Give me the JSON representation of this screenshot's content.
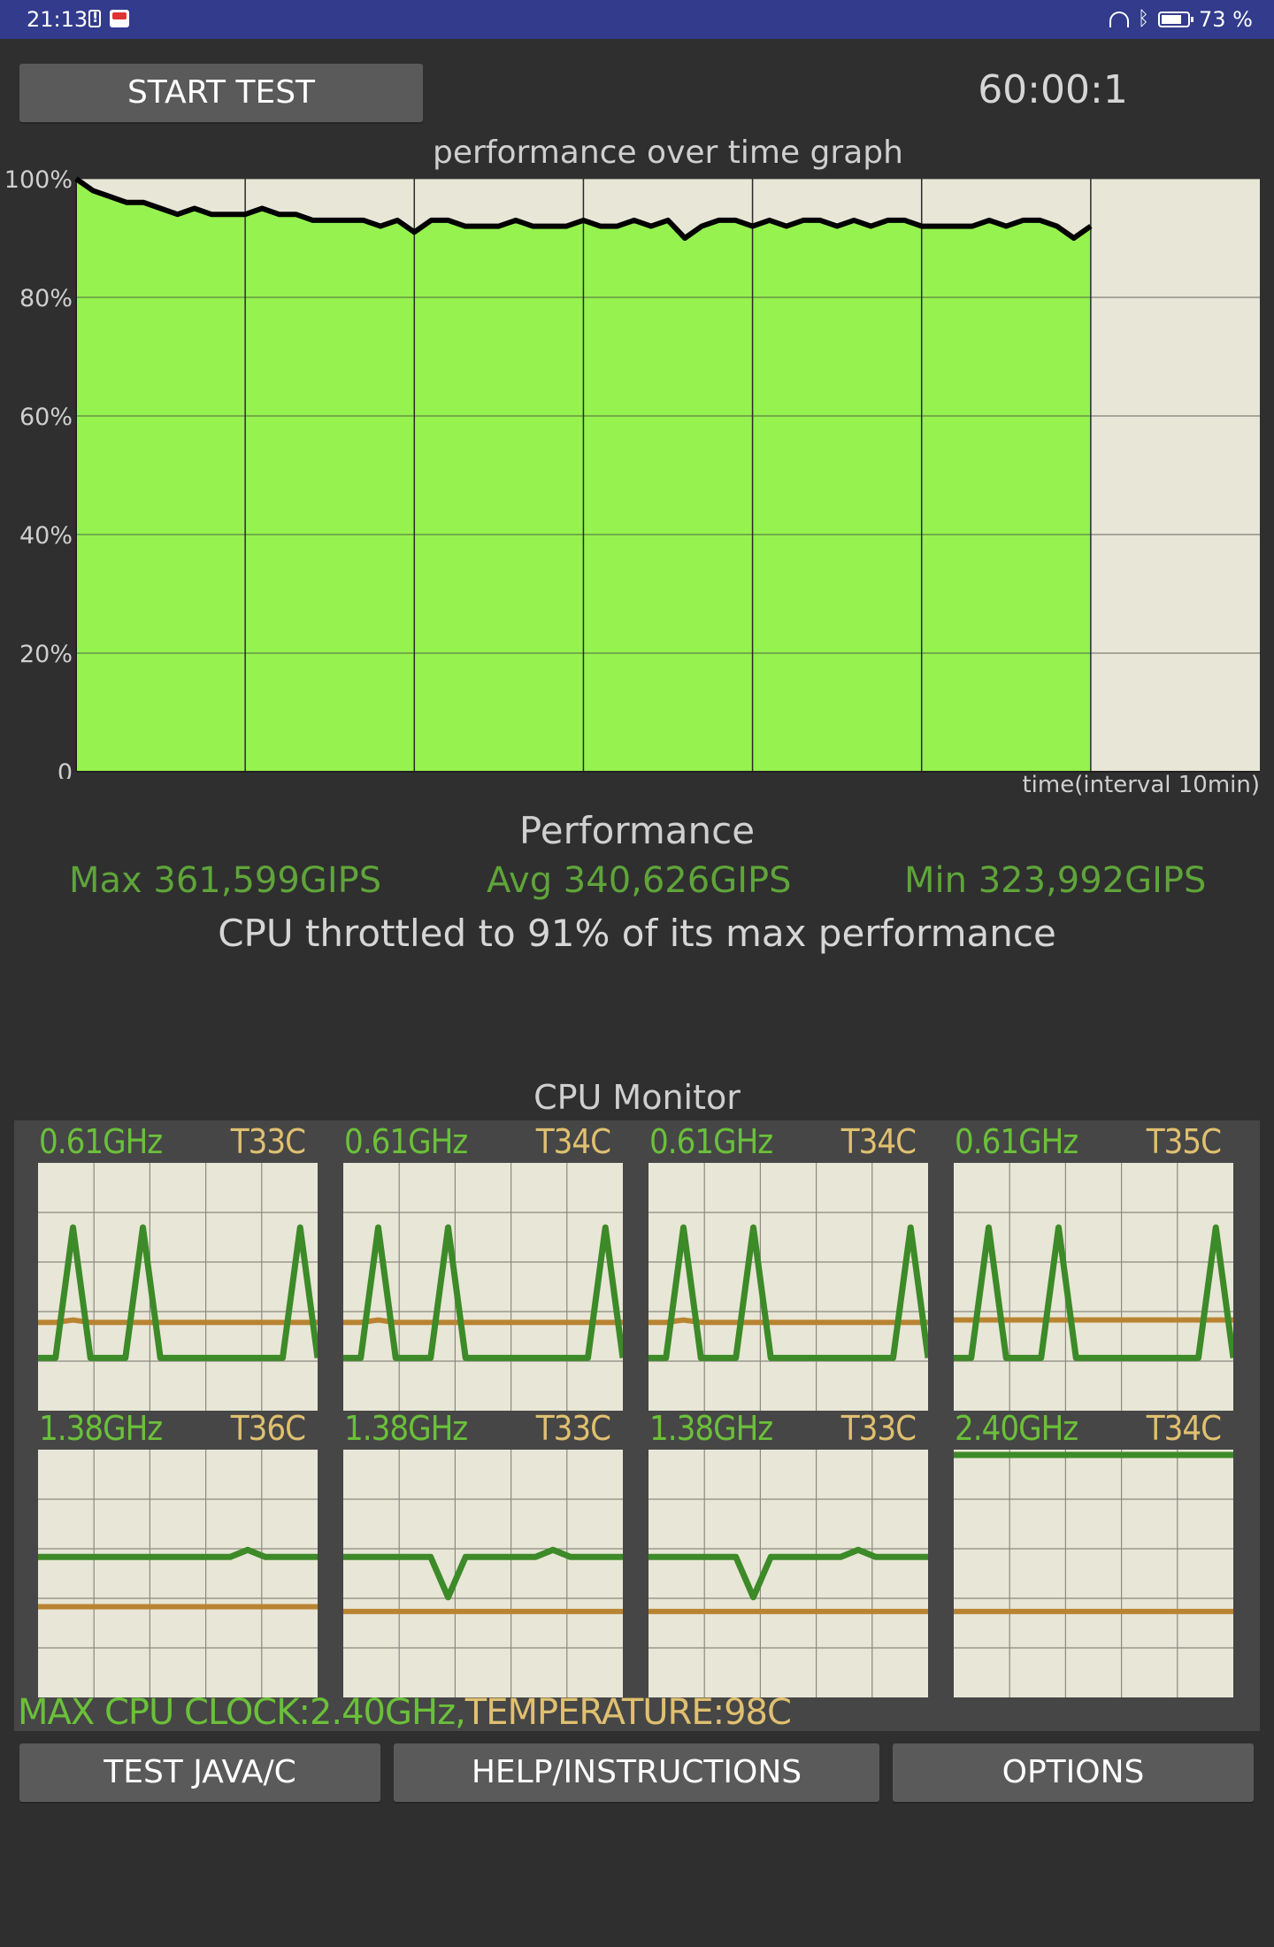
{
  "status_bar": {
    "time": "21:13",
    "battery_percent": "73 %"
  },
  "controls": {
    "start_label": "START TEST",
    "timer": "60:00:1"
  },
  "graph": {
    "title": "performance over time graph",
    "y_ticks": [
      "100%",
      "80%",
      "60%",
      "40%",
      "20%",
      "0"
    ],
    "x_label": "time(interval 10min)"
  },
  "chart_data": {
    "type": "area",
    "title": "performance over time graph",
    "xlabel": "time(interval 10min)",
    "ylabel": "",
    "ylim": [
      0,
      100
    ],
    "x_unit": "minutes",
    "xlim": [
      0,
      70
    ],
    "grid": true,
    "x": [
      0,
      1,
      2,
      3,
      4,
      5,
      6,
      7,
      8,
      9,
      10,
      11,
      12,
      13,
      14,
      15,
      16,
      17,
      18,
      19,
      20,
      21,
      22,
      23,
      24,
      25,
      26,
      27,
      28,
      29,
      30,
      31,
      32,
      33,
      34,
      35,
      36,
      37,
      38,
      39,
      40,
      41,
      42,
      43,
      44,
      45,
      46,
      47,
      48,
      49,
      50,
      51,
      52,
      53,
      54,
      55,
      56,
      57,
      58,
      59,
      60
    ],
    "values": [
      100,
      98,
      97,
      96,
      96,
      95,
      94,
      95,
      94,
      94,
      94,
      95,
      94,
      94,
      93,
      93,
      93,
      93,
      92,
      93,
      91,
      93,
      93,
      92,
      92,
      92,
      93,
      92,
      92,
      92,
      93,
      92,
      92,
      93,
      92,
      93,
      90,
      92,
      93,
      93,
      92,
      93,
      92,
      93,
      93,
      92,
      93,
      92,
      93,
      93,
      92,
      92,
      92,
      92,
      93,
      92,
      93,
      93,
      92,
      90,
      92
    ],
    "series": [
      {
        "values": [
          100,
          98,
          97,
          96,
          96,
          95,
          94,
          95,
          94,
          94,
          94,
          95,
          94,
          94,
          93,
          93,
          93,
          93,
          92,
          93,
          91,
          93,
          93,
          92,
          92,
          92,
          93,
          92,
          92,
          92,
          93,
          92,
          92,
          93,
          92,
          93,
          90,
          92,
          93,
          93,
          92,
          93,
          92,
          93,
          93,
          92,
          93,
          92,
          93,
          93,
          92,
          92,
          92,
          92,
          93,
          92,
          93,
          93,
          92,
          90,
          92
        ]
      }
    ]
  },
  "performance": {
    "heading": "Performance",
    "max": "Max 361,599GIPS",
    "avg": "Avg 340,626GIPS",
    "min": "Min 323,992GIPS",
    "throttle": "CPU throttled to 91% of its max performance"
  },
  "cpu_monitor": {
    "heading": "CPU Monitor",
    "cores": [
      {
        "freq": "0.61GHz",
        "temp": "T33C",
        "clock": [
          20,
          20,
          75,
          20,
          20,
          20,
          75,
          20,
          20,
          20,
          20,
          20,
          20,
          20,
          20,
          75,
          20
        ],
        "thermal": [
          35,
          35,
          36,
          35,
          35,
          35,
          35,
          35,
          35,
          35,
          35,
          35,
          35,
          35,
          35,
          35,
          35
        ]
      },
      {
        "freq": "0.61GHz",
        "temp": "T34C",
        "clock": [
          20,
          20,
          75,
          20,
          20,
          20,
          75,
          20,
          20,
          20,
          20,
          20,
          20,
          20,
          20,
          75,
          20
        ],
        "thermal": [
          35,
          35,
          36,
          35,
          35,
          35,
          35,
          35,
          35,
          35,
          35,
          35,
          35,
          35,
          35,
          35,
          35
        ]
      },
      {
        "freq": "0.61GHz",
        "temp": "T34C",
        "clock": [
          20,
          20,
          75,
          20,
          20,
          20,
          75,
          20,
          20,
          20,
          20,
          20,
          20,
          20,
          20,
          75,
          20
        ],
        "thermal": [
          35,
          35,
          36,
          35,
          35,
          35,
          35,
          35,
          35,
          35,
          35,
          35,
          35,
          35,
          35,
          35,
          35
        ]
      },
      {
        "freq": "0.61GHz",
        "temp": "T35C",
        "clock": [
          20,
          20,
          75,
          20,
          20,
          20,
          75,
          20,
          20,
          20,
          20,
          20,
          20,
          20,
          20,
          75,
          20
        ],
        "thermal": [
          36,
          36,
          36,
          36,
          36,
          36,
          36,
          36,
          36,
          36,
          36,
          36,
          36,
          36,
          36,
          36,
          36
        ]
      },
      {
        "freq": "1.38GHz",
        "temp": "T36C",
        "clock": [
          57,
          57,
          57,
          57,
          57,
          57,
          57,
          57,
          57,
          57,
          57,
          57,
          60,
          57,
          57,
          57,
          57
        ],
        "thermal": [
          36,
          36,
          36,
          36,
          36,
          36,
          36,
          36,
          36,
          36,
          36,
          36,
          36,
          36,
          36,
          36,
          36
        ]
      },
      {
        "freq": "1.38GHz",
        "temp": "T33C",
        "clock": [
          57,
          57,
          57,
          57,
          57,
          57,
          40,
          57,
          57,
          57,
          57,
          57,
          60,
          57,
          57,
          57,
          57
        ],
        "thermal": [
          34,
          34,
          34,
          34,
          34,
          34,
          34,
          34,
          34,
          34,
          34,
          34,
          34,
          34,
          34,
          34,
          34
        ]
      },
      {
        "freq": "1.38GHz",
        "temp": "T33C",
        "clock": [
          57,
          57,
          57,
          57,
          57,
          57,
          40,
          57,
          57,
          57,
          57,
          57,
          60,
          57,
          57,
          57,
          57
        ],
        "thermal": [
          34,
          34,
          34,
          34,
          34,
          34,
          34,
          34,
          34,
          34,
          34,
          34,
          34,
          34,
          34,
          34,
          34
        ]
      },
      {
        "freq": "2.40GHz",
        "temp": "T34C",
        "clock": [
          100,
          100,
          100,
          100,
          100,
          100,
          100,
          100,
          100,
          100,
          100,
          100,
          100,
          100,
          100,
          100,
          100
        ],
        "thermal": [
          34,
          34,
          34,
          34,
          34,
          34,
          34,
          34,
          34,
          34,
          34,
          34,
          34,
          34,
          34,
          34,
          34
        ]
      }
    ],
    "max_clock": "MAX CPU CLOCK:2.40GHz,",
    "max_temp": "TEMPERATURE:98C"
  },
  "buttons": {
    "test": "TEST JAVA/C",
    "help": "HELP/INSTRUCTIONS",
    "options": "OPTIONS"
  },
  "colors": {
    "fill_green": "#96f24f",
    "graph_bg": "#e8e6d6",
    "line": "#000000",
    "clock_line": "#3c8a28",
    "temp_line": "#b98432",
    "freq_text": "#6bc03a",
    "temp_text": "#e0c070",
    "stats_text": "#5fa43a"
  }
}
